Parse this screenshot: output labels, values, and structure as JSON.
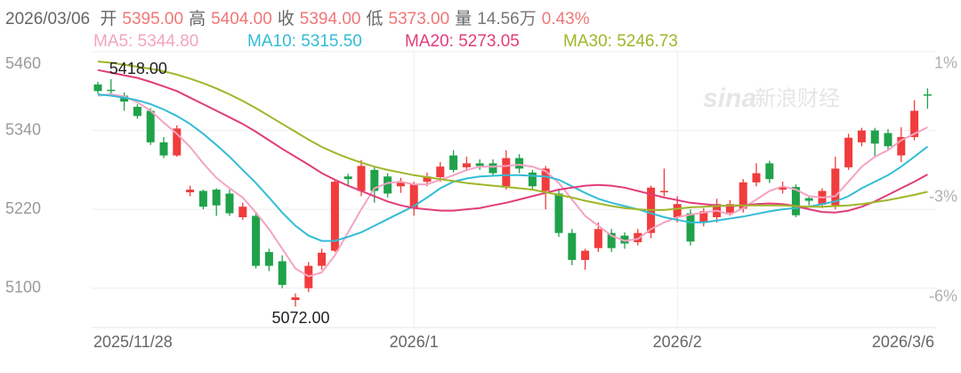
{
  "header": {
    "date": "2026/03/06",
    "stats": [
      {
        "label": "开",
        "text": "5395.00"
      },
      {
        "label": "高",
        "text": "5404.00"
      },
      {
        "label": "收",
        "text": "5394.00"
      },
      {
        "label": "低",
        "text": "5373.00"
      },
      {
        "label": "量",
        "text": "14.56万",
        "color": "#777777"
      }
    ],
    "change": "0.43%",
    "value_color": "#f07676"
  },
  "watermark": {
    "logo": "sina",
    "text": "新浪财经"
  },
  "chart_data": {
    "type": "candlestick",
    "categories": [
      "2025/11/28",
      null,
      null,
      null,
      null,
      null,
      null,
      null,
      null,
      null,
      null,
      null,
      null,
      null,
      null,
      null,
      null,
      null,
      null,
      null,
      null,
      null,
      null,
      null,
      "2026/1",
      null,
      null,
      null,
      null,
      null,
      null,
      null,
      null,
      null,
      null,
      null,
      null,
      null,
      null,
      null,
      null,
      null,
      null,
      null,
      "2026/2",
      null,
      null,
      null,
      null,
      null,
      null,
      null,
      null,
      null,
      null,
      null,
      null,
      null,
      null,
      null,
      null,
      null,
      null,
      "2026/3/6"
    ],
    "open": [
      5410,
      5402,
      5393,
      5376,
      5370,
      5322,
      5302,
      5246,
      5248,
      5250,
      5244,
      5208,
      5210,
      5155,
      5141,
      5082,
      5100,
      5134,
      5157,
      5270,
      5248,
      5280,
      5270,
      5255,
      5222,
      5262,
      5269,
      5302,
      5284,
      5290,
      5290,
      5255,
      5298,
      5276,
      5248,
      5244,
      5184,
      5143,
      5161,
      5184,
      5180,
      5170,
      5184,
      5247,
      5208,
      5214,
      5200,
      5208,
      5215,
      5221,
      5261,
      5290,
      5250,
      5254,
      5237,
      5227,
      5226,
      5284,
      5322,
      5340,
      5336,
      5302,
      5330,
      5395
    ],
    "high": [
      5414,
      5418,
      5398,
      5380,
      5374,
      5330,
      5348,
      5256,
      5250,
      5252,
      5250,
      5230,
      5214,
      5160,
      5150,
      5092,
      5140,
      5160,
      5265,
      5274,
      5295,
      5284,
      5275,
      5268,
      5262,
      5276,
      5292,
      5310,
      5300,
      5296,
      5296,
      5310,
      5304,
      5280,
      5286,
      5250,
      5190,
      5160,
      5200,
      5190,
      5185,
      5190,
      5256,
      5282,
      5240,
      5220,
      5222,
      5236,
      5234,
      5266,
      5290,
      5294,
      5262,
      5258,
      5240,
      5252,
      5300,
      5335,
      5344,
      5344,
      5342,
      5345,
      5386,
      5404
    ],
    "low": [
      5396,
      5392,
      5370,
      5358,
      5318,
      5298,
      5300,
      5240,
      5220,
      5210,
      5210,
      5204,
      5130,
      5126,
      5100,
      5072,
      5094,
      5128,
      5155,
      5255,
      5240,
      5230,
      5238,
      5245,
      5210,
      5255,
      5262,
      5276,
      5278,
      5280,
      5270,
      5250,
      5275,
      5250,
      5220,
      5178,
      5135,
      5128,
      5155,
      5155,
      5160,
      5165,
      5176,
      5240,
      5200,
      5165,
      5194,
      5200,
      5210,
      5215,
      5255,
      5260,
      5244,
      5208,
      5226,
      5222,
      5220,
      5280,
      5316,
      5300,
      5310,
      5292,
      5325,
      5373
    ],
    "close": [
      5400,
      5401,
      5384,
      5362,
      5322,
      5302,
      5343,
      5250,
      5224,
      5226,
      5214,
      5224,
      5134,
      5134,
      5105,
      5086,
      5134,
      5154,
      5262,
      5266,
      5286,
      5248,
      5244,
      5262,
      5258,
      5270,
      5285,
      5280,
      5290,
      5286,
      5275,
      5298,
      5282,
      5255,
      5282,
      5184,
      5143,
      5157,
      5190,
      5161,
      5168,
      5184,
      5253,
      5248,
      5228,
      5171,
      5217,
      5228,
      5228,
      5261,
      5275,
      5266,
      5254,
      5211,
      5233,
      5248,
      5282,
      5329,
      5340,
      5320,
      5316,
      5330,
      5370,
      5394
    ],
    "up_color": "#f03c3c",
    "down_color": "#1fa24a",
    "series": [
      {
        "name": "MA5: 5344.80",
        "color": "#f4a3c3",
        "values": [
          5393,
          5395,
          5392,
          5383,
          5370,
          5352,
          5335,
          5315,
          5290,
          5268,
          5252,
          5238,
          5215,
          5190,
          5160,
          5130,
          5118,
          5124,
          5150,
          5185,
          5220,
          5252,
          5260,
          5262,
          5258,
          5258,
          5265,
          5272,
          5280,
          5285,
          5285,
          5286,
          5288,
          5285,
          5278,
          5260,
          5235,
          5210,
          5195,
          5180,
          5172,
          5175,
          5190,
          5200,
          5208,
          5212,
          5215,
          5218,
          5212,
          5222,
          5235,
          5248,
          5255,
          5250,
          5240,
          5238,
          5240,
          5262,
          5285,
          5300,
          5310,
          5325,
          5335,
          5344.8
        ]
      },
      {
        "name": "MA10: 5315.50",
        "color": "#33bcd6",
        "values": [
          5395,
          5393,
          5390,
          5386,
          5380,
          5372,
          5362,
          5350,
          5335,
          5318,
          5300,
          5280,
          5260,
          5238,
          5215,
          5195,
          5180,
          5172,
          5172,
          5178,
          5185,
          5195,
          5205,
          5215,
          5225,
          5238,
          5252,
          5262,
          5267,
          5270,
          5271,
          5272,
          5272,
          5271,
          5270,
          5265,
          5255,
          5245,
          5236,
          5230,
          5225,
          5220,
          5214,
          5208,
          5204,
          5200,
          5200,
          5203,
          5206,
          5209,
          5213,
          5217,
          5220,
          5222,
          5224,
          5228,
          5232,
          5240,
          5252,
          5262,
          5272,
          5285,
          5300,
          5315.5
        ]
      },
      {
        "name": "MA20: 5273.05",
        "color": "#e23c7a",
        "values": [
          5432,
          5428,
          5424,
          5420,
          5414,
          5407,
          5400,
          5390,
          5380,
          5370,
          5360,
          5350,
          5338,
          5325,
          5312,
          5300,
          5288,
          5275,
          5265,
          5256,
          5248,
          5240,
          5232,
          5226,
          5222,
          5220,
          5218,
          5218,
          5220,
          5222,
          5226,
          5230,
          5235,
          5240,
          5245,
          5250,
          5253,
          5256,
          5257,
          5256,
          5253,
          5248,
          5243,
          5238,
          5234,
          5230,
          5228,
          5226,
          5225,
          5226,
          5228,
          5229,
          5228,
          5225,
          5220,
          5216,
          5215,
          5218,
          5224,
          5232,
          5242,
          5252,
          5262,
          5273.05
        ]
      },
      {
        "name": "MA30: 5246.73",
        "color": "#9fb62a",
        "values": [
          5445,
          5443,
          5440,
          5437,
          5434,
          5430,
          5425,
          5419,
          5412,
          5404,
          5395,
          5385,
          5374,
          5362,
          5350,
          5338,
          5326,
          5315,
          5306,
          5298,
          5291,
          5285,
          5280,
          5276,
          5272,
          5269,
          5266,
          5263,
          5260,
          5258,
          5256,
          5254,
          5252,
          5250,
          5246,
          5242,
          5238,
          5233,
          5229,
          5225,
          5222,
          5220,
          5219,
          5219,
          5221,
          5223,
          5224,
          5225,
          5226,
          5226,
          5226,
          5226,
          5226,
          5225,
          5224,
          5224,
          5225,
          5226,
          5228,
          5231,
          5234,
          5238,
          5242,
          5246.73
        ]
      }
    ],
    "annotations": [
      {
        "label": "5418.00",
        "value": 5418
      },
      {
        "label": "5072.00",
        "value": 5072
      }
    ],
    "ylim": [
      5040,
      5460
    ],
    "yticks": [
      5100,
      5220,
      5340,
      5460
    ],
    "y2lim": [
      -6.91,
      1.37
    ],
    "y2ticks": [
      {
        "value": 1,
        "label": "1%"
      },
      {
        "value": -3,
        "label": "-3%"
      },
      {
        "value": -6,
        "label": "-6%"
      }
    ],
    "grid": true
  }
}
